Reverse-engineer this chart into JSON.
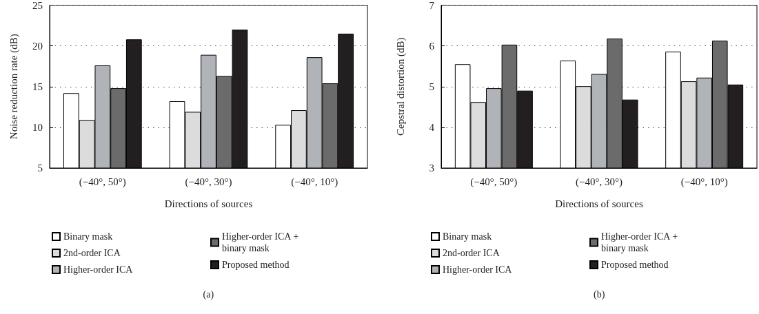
{
  "chart_data": [
    {
      "type": "bar",
      "ylabel": "Noise reduction rate (dB)",
      "xlabel": "Directions of sources",
      "categories": [
        "(−40°, 50°)",
        "(−40°, 30°)",
        "(−40°, 10°)"
      ],
      "series": [
        {
          "name": "Binary mask",
          "color": "#ffffff",
          "values": [
            14.2,
            13.2,
            10.3
          ]
        },
        {
          "name": "2nd-order ICA",
          "color": "#dcdcdc",
          "values": [
            10.9,
            11.9,
            12.1
          ]
        },
        {
          "name": "Higher-order ICA",
          "color": "#b0b3b8",
          "values": [
            17.6,
            18.9,
            18.6
          ]
        },
        {
          "name": "Higher-order ICA + binary mask",
          "color": "#6b6b6b",
          "values": [
            14.8,
            16.3,
            15.4
          ]
        },
        {
          "name": "Proposed method",
          "color": "#231f20",
          "values": [
            20.8,
            22.0,
            21.5
          ]
        }
      ],
      "ylim": [
        5,
        25
      ],
      "yticks": [
        5,
        10,
        15,
        20,
        25
      ],
      "grid": "y",
      "legend": "bottom",
      "annotations": [
        "(a)"
      ]
    },
    {
      "type": "bar",
      "ylabel": "Cepstral distortion (dB)",
      "xlabel": "Directions of sources",
      "categories": [
        "(−40°, 50°)",
        "(−40°, 30°)",
        "(−40°, 10°)"
      ],
      "series": [
        {
          "name": "Binary mask",
          "color": "#ffffff",
          "values": [
            5.55,
            5.64,
            5.86
          ]
        },
        {
          "name": "2nd-order ICA",
          "color": "#dcdcdc",
          "values": [
            4.62,
            5.01,
            5.13
          ]
        },
        {
          "name": "Higher-order ICA",
          "color": "#b0b3b8",
          "values": [
            4.96,
            5.31,
            5.22
          ]
        },
        {
          "name": "Higher-order ICA + binary mask",
          "color": "#6b6b6b",
          "values": [
            6.03,
            6.18,
            6.13
          ]
        },
        {
          "name": "Proposed method",
          "color": "#231f20",
          "values": [
            4.9,
            4.68,
            5.05
          ]
        }
      ],
      "ylim": [
        3,
        7
      ],
      "yticks": [
        3,
        4,
        5,
        6,
        7
      ],
      "grid": "y",
      "legend": "bottom",
      "annotations": [
        "(b)"
      ]
    }
  ]
}
